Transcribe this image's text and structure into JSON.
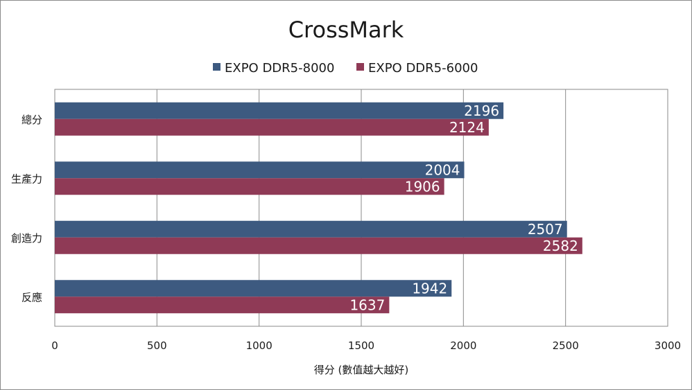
{
  "chart_data": {
    "type": "bar",
    "orientation": "horizontal",
    "title": "CrossMark",
    "xlabel": "得分 (數值越大越好)",
    "ylabel": "",
    "categories": [
      "總分",
      "生產力",
      "創造力",
      "反應"
    ],
    "series": [
      {
        "name": "EXPO DDR5-8000",
        "color": "#3d5a80",
        "values": [
          2196,
          2004,
          2507,
          1942
        ]
      },
      {
        "name": "EXPO DDR5-6000",
        "color": "#8f3a56",
        "values": [
          2124,
          1906,
          2582,
          1637
        ]
      }
    ],
    "xlim": [
      0,
      3000
    ],
    "xticks": [
      "0",
      "500",
      "1000",
      "1500",
      "2000",
      "2500",
      "3000"
    ],
    "grid": true,
    "legend_position": "top-center",
    "data_labels": true
  }
}
